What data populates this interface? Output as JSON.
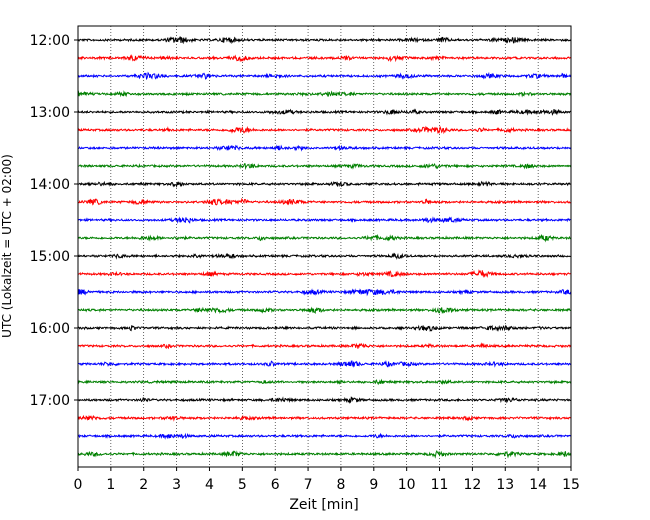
{
  "chart_data": {
    "type": "line",
    "title": "",
    "xlabel": "Zeit  [min]",
    "ylabel": "UTC (Lokalzeit = UTC + 02:00)",
    "xlim": [
      0,
      15
    ],
    "x_ticks": [
      0,
      1,
      2,
      3,
      4,
      5,
      6,
      7,
      8,
      9,
      10,
      11,
      12,
      13,
      14,
      15
    ],
    "y_tick_labels": [
      "12:00",
      "13:00",
      "14:00",
      "15:00",
      "16:00",
      "17:00"
    ],
    "grid": "vertical dotted",
    "line_colors": [
      "#000000",
      "#ff0000",
      "#0000ff",
      "#008000"
    ],
    "traces": [
      {
        "start": "12:00",
        "color": "#000000"
      },
      {
        "start": "12:15",
        "color": "#ff0000"
      },
      {
        "start": "12:30",
        "color": "#0000ff"
      },
      {
        "start": "12:45",
        "color": "#008000"
      },
      {
        "start": "13:00",
        "color": "#000000"
      },
      {
        "start": "13:15",
        "color": "#ff0000"
      },
      {
        "start": "13:30",
        "color": "#0000ff"
      },
      {
        "start": "13:45",
        "color": "#008000"
      },
      {
        "start": "14:00",
        "color": "#000000"
      },
      {
        "start": "14:15",
        "color": "#ff0000"
      },
      {
        "start": "14:30",
        "color": "#0000ff"
      },
      {
        "start": "14:45",
        "color": "#008000"
      },
      {
        "start": "15:00",
        "color": "#000000"
      },
      {
        "start": "15:15",
        "color": "#ff0000"
      },
      {
        "start": "15:30",
        "color": "#0000ff"
      },
      {
        "start": "15:45",
        "color": "#008000"
      },
      {
        "start": "16:00",
        "color": "#000000"
      },
      {
        "start": "16:15",
        "color": "#ff0000"
      },
      {
        "start": "16:30",
        "color": "#0000ff"
      },
      {
        "start": "16:45",
        "color": "#008000"
      },
      {
        "start": "17:00",
        "color": "#000000"
      },
      {
        "start": "17:15",
        "color": "#ff0000"
      },
      {
        "start": "17:30",
        "color": "#0000ff"
      },
      {
        "start": "17:45",
        "color": "#008000"
      }
    ]
  }
}
